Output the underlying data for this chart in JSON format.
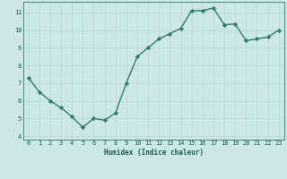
{
  "x": [
    0,
    1,
    2,
    3,
    4,
    5,
    6,
    7,
    8,
    9,
    10,
    11,
    12,
    13,
    14,
    15,
    16,
    17,
    18,
    19,
    20,
    21,
    22,
    23
  ],
  "y": [
    7.3,
    6.5,
    6.0,
    5.6,
    5.1,
    4.5,
    5.0,
    4.9,
    5.3,
    7.0,
    8.5,
    9.0,
    9.5,
    9.8,
    10.1,
    11.1,
    11.1,
    11.25,
    10.3,
    10.35,
    9.4,
    9.5,
    9.6,
    10.0
  ],
  "xlabel": "Humidex (Indice chaleur)",
  "xlim": [
    -0.5,
    23.5
  ],
  "ylim": [
    3.8,
    11.6
  ],
  "yticks": [
    4,
    5,
    6,
    7,
    8,
    9,
    10,
    11
  ],
  "xticks": [
    0,
    1,
    2,
    3,
    4,
    5,
    6,
    7,
    8,
    9,
    10,
    11,
    12,
    13,
    14,
    15,
    16,
    17,
    18,
    19,
    20,
    21,
    22,
    23
  ],
  "line_color": "#2e7d6e",
  "marker_color": "#2e7d6e",
  "bg_color": "#cce8e6",
  "grid_color": "#b8d8d5",
  "axis_color": "#2e7d6e",
  "tick_label_color": "#1a5c50",
  "xlabel_color": "#1a5c50",
  "bottom_bar_color": "#3a7a6e"
}
